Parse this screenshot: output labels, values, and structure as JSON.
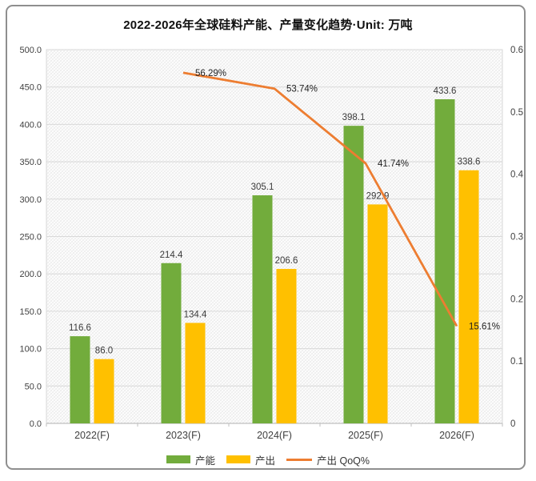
{
  "chart_data": {
    "type": "combo-bar-line",
    "title": "2022-2026年全球硅料产能、产量变化趋势·Unit: 万吨",
    "categories": [
      "2022(F)",
      "2023(F)",
      "2024(F)",
      "2025(F)",
      "2026(F)"
    ],
    "series": [
      {
        "name": "产能",
        "chart_type": "bar",
        "axis": "left",
        "color": "#72AC3C",
        "values": [
          116.6,
          214.4,
          305.1,
          398.1,
          433.6
        ],
        "data_labels": [
          "116.6",
          "214.4",
          "305.1",
          "398.1",
          "433.6"
        ]
      },
      {
        "name": "产出",
        "chart_type": "bar",
        "axis": "left",
        "color": "#FFC000",
        "values": [
          86.0,
          134.4,
          206.6,
          292.9,
          338.6
        ],
        "data_labels": [
          "86.0",
          "134.4",
          "206.6",
          "292.9",
          "338.6"
        ]
      },
      {
        "name": "产出 QoQ%",
        "chart_type": "line",
        "axis": "right",
        "color": "#ED7D31",
        "values": [
          null,
          0.5629,
          0.5374,
          0.4174,
          0.1561
        ],
        "data_labels": [
          null,
          "56.29%",
          "53.74%",
          "41.74%",
          "15.61%"
        ]
      }
    ],
    "left_axis": {
      "min": 0,
      "max": 500,
      "step": 50,
      "tick_labels": [
        "0.0",
        "50.0",
        "100.0",
        "150.0",
        "200.0",
        "250.0",
        "300.0",
        "350.0",
        "400.0",
        "450.0",
        "500.0"
      ]
    },
    "right_axis": {
      "min": 0,
      "max": 0.6,
      "step": 0.1,
      "tick_labels": [
        "0",
        "0.1",
        "0.2",
        "0.3",
        "0.4",
        "0.5",
        "0.6"
      ]
    },
    "legend": {
      "position": "bottom",
      "items": [
        "产能",
        "产出",
        "产出 QoQ%"
      ]
    },
    "grid": true,
    "plot_background": "fine-crosshatch",
    "colors": {
      "grid_line": "#d9d9d9",
      "axis_line": "#bfbfbf",
      "hatch": "#e9e9e9",
      "tick_text": "#404040",
      "data_label_text": "#3a3a3a",
      "frame_border": "#8f8f8f"
    }
  }
}
